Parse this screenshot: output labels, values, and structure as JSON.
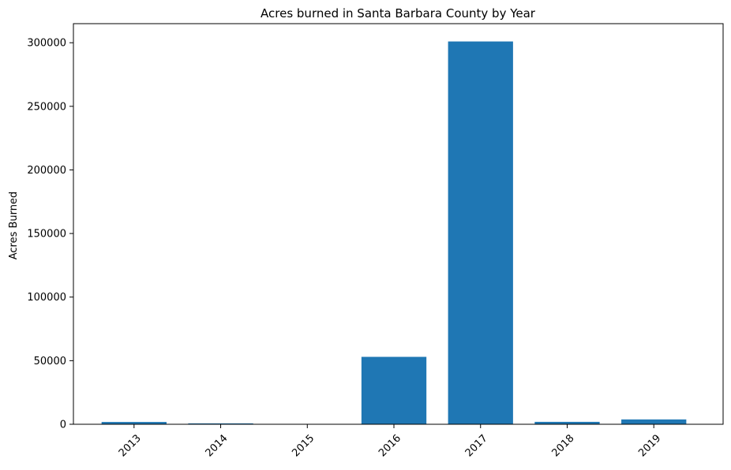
{
  "chart_data": {
    "type": "bar",
    "title": "Acres burned in Santa Barbara County by Year",
    "xlabel": "",
    "ylabel": "Acres Burned",
    "categories": [
      "2013",
      "2014",
      "2015",
      "2016",
      "2017",
      "2018",
      "2019"
    ],
    "values": [
      1800,
      700,
      300,
      53000,
      301000,
      1900,
      3800
    ],
    "ylim": [
      0,
      315000
    ],
    "yticks": [
      0,
      50000,
      100000,
      150000,
      200000,
      250000,
      300000
    ],
    "ytick_labels": [
      "0",
      "50000",
      "100000",
      "150000",
      "200000",
      "250000",
      "300000"
    ],
    "grid": false,
    "legend": "none",
    "bar_color": "#1f77b4",
    "xtick_rotation_deg": 45
  }
}
